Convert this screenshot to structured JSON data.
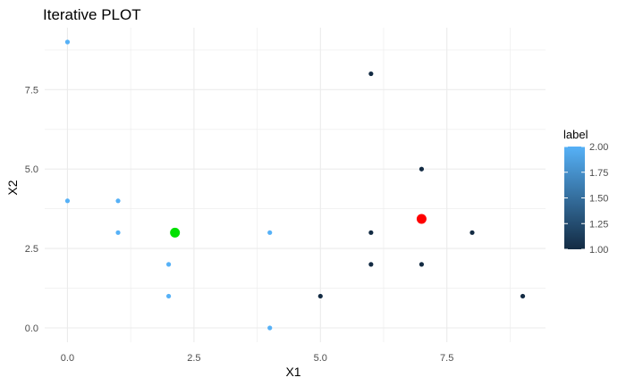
{
  "chart_data": {
    "type": "scatter",
    "title": "Iterative PLOT",
    "xlabel": "X1",
    "ylabel": "X2",
    "xlim": [
      -0.45,
      9.45
    ],
    "ylim": [
      -0.45,
      9.45
    ],
    "x_ticks": [
      0,
      2.5,
      5,
      7.5
    ],
    "x_tick_labels": [
      "0.0",
      "2.5",
      "5.0",
      "7.5"
    ],
    "y_ticks": [
      0,
      2.5,
      5,
      7.5
    ],
    "y_tick_labels": [
      "0.0",
      "2.5",
      "5.0",
      "7.5"
    ],
    "grid": true,
    "legend": {
      "title": "label",
      "placement": "right",
      "type": "colorbar",
      "range": [
        1.0,
        2.0
      ],
      "ticks": [
        1.0,
        1.25,
        1.5,
        1.75,
        2.0
      ],
      "tick_labels": [
        "1.00",
        "1.25",
        "1.50",
        "1.75",
        "2.00"
      ],
      "color_low": "#132B43",
      "color_high": "#56B1F7"
    },
    "points": [
      {
        "x": 0,
        "y": 9,
        "label": 2
      },
      {
        "x": 0,
        "y": 4,
        "label": 2
      },
      {
        "x": 1,
        "y": 4,
        "label": 2
      },
      {
        "x": 1,
        "y": 3,
        "label": 2
      },
      {
        "x": 2,
        "y": 2,
        "label": 2
      },
      {
        "x": 2,
        "y": 1,
        "label": 2
      },
      {
        "x": 4,
        "y": 3,
        "label": 2
      },
      {
        "x": 4,
        "y": 0,
        "label": 2
      },
      {
        "x": 5,
        "y": 1,
        "label": 1
      },
      {
        "x": 6,
        "y": 8,
        "label": 1
      },
      {
        "x": 6,
        "y": 3,
        "label": 1
      },
      {
        "x": 6,
        "y": 2,
        "label": 1
      },
      {
        "x": 7,
        "y": 5,
        "label": 1
      },
      {
        "x": 7,
        "y": 2,
        "label": 1
      },
      {
        "x": 8,
        "y": 3,
        "label": 1
      },
      {
        "x": 9,
        "y": 1,
        "label": 1
      }
    ],
    "centroids": [
      {
        "x": 2.125,
        "y": 3.0,
        "color": "#00E000"
      },
      {
        "x": 7.0,
        "y": 3.43,
        "color": "#FF0000"
      }
    ]
  }
}
